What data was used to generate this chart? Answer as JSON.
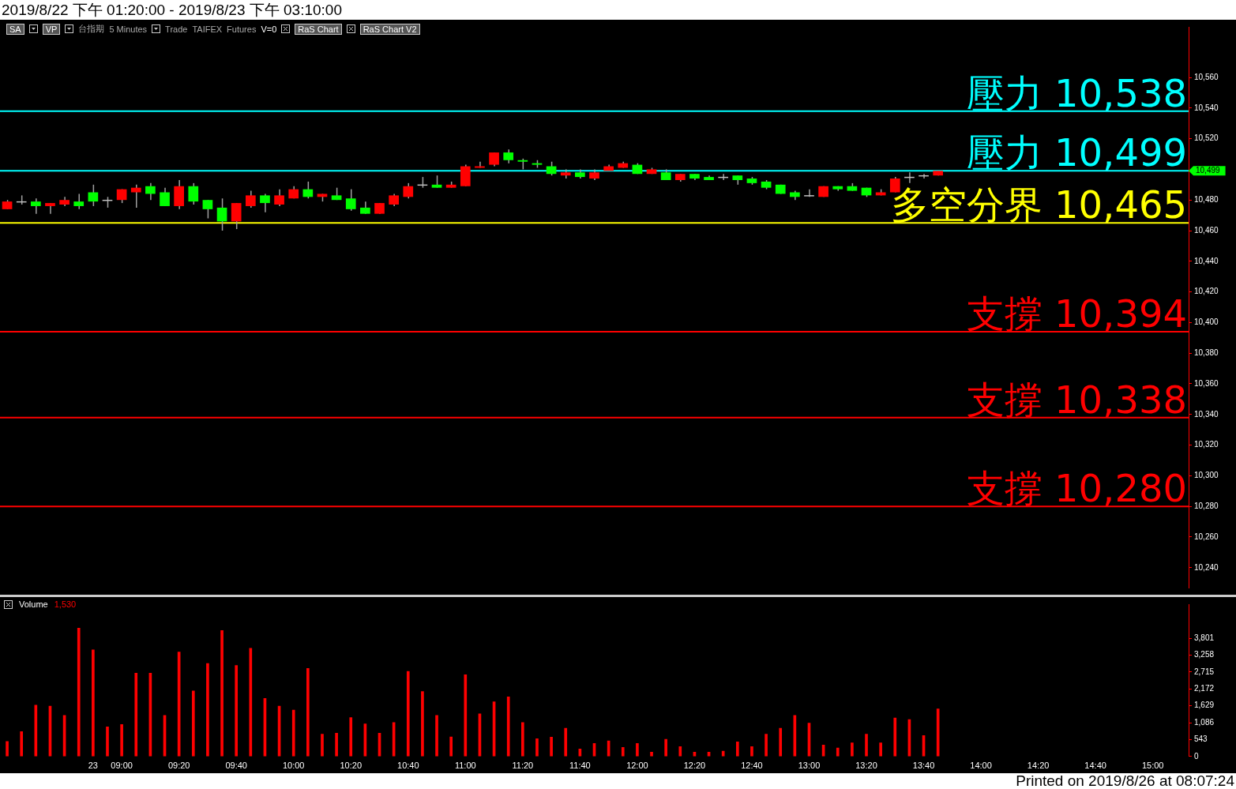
{
  "chart_data": [
    {
      "type": "candlestick",
      "title": "2019/8/22 下午 01:20:00 - 2019/8/23 下午 03:10:00",
      "categories": [
        null,
        null,
        null,
        null,
        null,
        null,
        null,
        null,
        null,
        null,
        null,
        null,
        null,
        null,
        null,
        null,
        null,
        null,
        null,
        null,
        null,
        null,
        null,
        null,
        null,
        null,
        null,
        null,
        null,
        null,
        null,
        null,
        null,
        null,
        null,
        null,
        null,
        null,
        null,
        null,
        null,
        null,
        null,
        null,
        null,
        null,
        null,
        null,
        null,
        null,
        null,
        null,
        null,
        null,
        null,
        null,
        null,
        null,
        null,
        null,
        null,
        null,
        null,
        null,
        null,
        null,
        null,
        null,
        null,
        null,
        null,
        null,
        null,
        null,
        null,
        null,
        null,
        null,
        null,
        null,
        null,
        null,
        null
      ],
      "ohlc": [
        [
          10474,
          10480,
          10474,
          10479
        ],
        [
          10479,
          10483,
          10477,
          10479
        ],
        [
          10479,
          10481,
          10471,
          10476
        ],
        [
          10476,
          10478,
          10471,
          10478
        ],
        [
          10477,
          10482,
          10476,
          10480
        ],
        [
          10479,
          10484,
          10474,
          10476
        ],
        [
          10485,
          10490,
          10476,
          10479
        ],
        [
          10480,
          10482,
          10475,
          10480
        ],
        [
          10480,
          10487,
          10478,
          10487
        ],
        [
          10485,
          10490,
          10475,
          10488
        ],
        [
          10489,
          10491,
          10480,
          10484
        ],
        [
          10485,
          10488,
          10476,
          10476
        ],
        [
          10476,
          10493,
          10474,
          10489
        ],
        [
          10489,
          10491,
          10477,
          10479
        ],
        [
          10480,
          10480,
          10468,
          10474
        ],
        [
          10475,
          10481,
          10460,
          10466
        ],
        [
          10466,
          10478,
          10461,
          10478
        ],
        [
          10476,
          10486,
          10475,
          10483
        ],
        [
          10483,
          10484,
          10472,
          10478
        ],
        [
          10477,
          10487,
          10476,
          10483
        ],
        [
          10481,
          10489,
          10481,
          10487
        ],
        [
          10487,
          10492,
          10481,
          10482
        ],
        [
          10482,
          10484,
          10479,
          10484
        ],
        [
          10483,
          10488,
          10480,
          10480
        ],
        [
          10481,
          10487,
          10473,
          10474
        ],
        [
          10475,
          10479,
          10471,
          10471
        ],
        [
          10471,
          10478,
          10471,
          10478
        ],
        [
          10477,
          10484,
          10476,
          10483
        ],
        [
          10482,
          10491,
          10481,
          10489
        ],
        [
          10490,
          10495,
          10488,
          10490
        ],
        [
          10490,
          10496,
          10488,
          10488
        ],
        [
          10488,
          10492,
          10488,
          10490
        ],
        [
          10489,
          10503,
          10489,
          10502
        ],
        [
          10501,
          10505,
          10501,
          10502
        ],
        [
          10503,
          10511,
          10502,
          10511
        ],
        [
          10511,
          10513,
          10504,
          10506
        ],
        [
          10506,
          10507,
          10500,
          10505
        ],
        [
          10504,
          10506,
          10501,
          10503
        ],
        [
          10502,
          10505,
          10496,
          10497
        ],
        [
          10496,
          10500,
          10494,
          10498
        ],
        [
          10498,
          10500,
          10494,
          10495
        ],
        [
          10494,
          10500,
          10493,
          10498
        ],
        [
          10499,
          10503,
          10499,
          10502
        ],
        [
          10501,
          10505,
          10501,
          10504
        ],
        [
          10503,
          10504,
          10497,
          10497
        ],
        [
          10497,
          10501,
          10497,
          10500
        ],
        [
          10498,
          10500,
          10493,
          10493
        ],
        [
          10493,
          10497,
          10492,
          10497
        ],
        [
          10497,
          10497,
          10493,
          10494
        ],
        [
          10495,
          10496,
          10493,
          10493
        ],
        [
          10495,
          10497,
          10493,
          10495
        ],
        [
          10496,
          10496,
          10490,
          10493
        ],
        [
          10494,
          10495,
          10490,
          10491
        ],
        [
          10492,
          10493,
          10487,
          10488
        ],
        [
          10490,
          10490,
          10484,
          10484
        ],
        [
          10485,
          10486,
          10480,
          10482
        ],
        [
          10483,
          10487,
          10482,
          10483
        ],
        [
          10482,
          10489,
          10482,
          10489
        ],
        [
          10489,
          10489,
          10486,
          10487
        ],
        [
          10489,
          10491,
          10486,
          10486
        ],
        [
          10488,
          10488,
          10482,
          10483
        ],
        [
          10483,
          10487,
          10483,
          10485
        ],
        [
          10485,
          10495,
          10485,
          10494
        ],
        [
          10495,
          10498,
          10491,
          10495
        ],
        [
          10496,
          10497,
          10494,
          10496
        ],
        [
          10496,
          10499,
          10496,
          10499
        ],
        null,
        null,
        null,
        null,
        null,
        null,
        null,
        null,
        null,
        null,
        null,
        null,
        null,
        null,
        null,
        null,
        null
      ],
      "colors": [
        "#ff0000",
        "#c0c0c0",
        "#00ff00",
        "#ff0000",
        "#ff0000",
        "#00ff00",
        "#00ff00",
        "#c0c0c0",
        "#ff0000",
        "#ff0000",
        "#00ff00",
        "#00ff00",
        "#ff0000",
        "#00ff00",
        "#00ff00",
        "#00ff00",
        "#ff0000",
        "#ff0000",
        "#00ff00",
        "#ff0000",
        "#ff0000",
        "#00ff00",
        "#ff0000",
        "#00ff00",
        "#00ff00",
        "#00ff00",
        "#ff0000",
        "#ff0000",
        "#ff0000",
        "#c0c0c0",
        "#00ff00",
        "#ff0000",
        "#ff0000",
        "#ff0000",
        "#ff0000",
        "#00ff00",
        "#00ff00",
        "#00ff00",
        "#00ff00",
        "#ff0000",
        "#00ff00",
        "#ff0000",
        "#ff0000",
        "#ff0000",
        "#00ff00",
        "#ff0000",
        "#00ff00",
        "#ff0000",
        "#00ff00",
        "#00ff00",
        "#c0c0c0",
        "#00ff00",
        "#00ff00",
        "#00ff00",
        "#00ff00",
        "#00ff00",
        "#c0c0c0",
        "#ff0000",
        "#00ff00",
        "#00ff00",
        "#00ff00",
        "#ff0000",
        "#ff0000",
        "#c0c0c0",
        "#c0c0c0",
        "#ff0000",
        null,
        null,
        null,
        null,
        null,
        null,
        null,
        null,
        null,
        null,
        null,
        null,
        null,
        null,
        null,
        null,
        null
      ],
      "ylim": [
        10227,
        10593
      ],
      "yticks": [
        {
          "value": 10240,
          "label": "10,240"
        },
        {
          "value": 10260,
          "label": "10,260"
        },
        {
          "value": 10280,
          "label": "10,280"
        },
        {
          "value": 10300,
          "label": "10,300"
        },
        {
          "value": 10320,
          "label": "10,320"
        },
        {
          "value": 10340,
          "label": "10,340"
        },
        {
          "value": 10360,
          "label": "10,360"
        },
        {
          "value": 10380,
          "label": "10,380"
        },
        {
          "value": 10400,
          "label": "10,400"
        },
        {
          "value": 10420,
          "label": "10,420"
        },
        {
          "value": 10440,
          "label": "10,440"
        },
        {
          "value": 10460,
          "label": "10,460"
        },
        {
          "value": 10480,
          "label": "10,480"
        },
        {
          "value": 10520,
          "label": "10,520"
        },
        {
          "value": 10540,
          "label": "10,540"
        },
        {
          "value": 10560,
          "label": "10,560"
        }
      ],
      "ref_lines": [
        {
          "axis": "y",
          "value": 10538,
          "label": "壓力 10,538",
          "color": "#00ffff"
        },
        {
          "axis": "y",
          "value": 10499,
          "label": "壓力 10,499",
          "color": "#00ffff"
        },
        {
          "axis": "y",
          "value": 10465,
          "label": "多空分界 10,465",
          "color": "#ffff00"
        },
        {
          "axis": "y",
          "value": 10394,
          "label": "支撐 10,394",
          "color": "#ff0000"
        },
        {
          "axis": "y",
          "value": 10338,
          "label": "支撐 10,338",
          "color": "#ff0000"
        },
        {
          "axis": "y",
          "value": 10280,
          "label": "支撐 10,280",
          "color": "#ff0000"
        }
      ],
      "annotations": [
        "SA",
        "VP",
        "台指期",
        "5 Minutes",
        "Trade",
        "TAIFEX",
        "Futures",
        "V=0",
        "RaS Chart",
        "RaS Chart V2",
        "10,499"
      ],
      "tick_labels": "y",
      "grid": false,
      "legend": false
    },
    {
      "type": "bar",
      "title": "Volume",
      "categories": [
        null,
        null,
        null,
        null,
        null,
        null,
        "23",
        null,
        "09:00",
        null,
        null,
        null,
        "09:20",
        null,
        null,
        null,
        "09:40",
        null,
        null,
        null,
        "10:00",
        null,
        null,
        null,
        "10:20",
        null,
        null,
        null,
        "10:40",
        null,
        null,
        null,
        "11:00",
        null,
        null,
        null,
        "11:20",
        null,
        null,
        null,
        "11:40",
        null,
        null,
        null,
        "12:00",
        null,
        null,
        null,
        "12:20",
        null,
        null,
        null,
        "12:40",
        null,
        null,
        null,
        "13:00",
        null,
        null,
        null,
        "13:20",
        null,
        null,
        null,
        "13:40",
        null,
        null,
        null,
        "14:00",
        null,
        null,
        null,
        "14:20",
        null,
        null,
        null,
        "14:40",
        null,
        null,
        null,
        "15:00",
        null,
        null
      ],
      "values": [
        480,
        800,
        1650,
        1620,
        1320,
        4130,
        3430,
        950,
        1030,
        2680,
        2680,
        1320,
        3360,
        2110,
        2990,
        4050,
        2930,
        3480,
        1870,
        1620,
        1490,
        2830,
        720,
        750,
        1250,
        1050,
        750,
        1090,
        2740,
        2090,
        1320,
        630,
        2630,
        1370,
        1760,
        1920,
        1090,
        570,
        620,
        910,
        240,
        420,
        500,
        290,
        420,
        140,
        550,
        320,
        140,
        140,
        170,
        470,
        320,
        720,
        910,
        1320,
        1070,
        370,
        270,
        440,
        720,
        440,
        1240,
        1190,
        670,
        1530,
        null,
        null,
        null,
        null,
        null,
        null,
        null,
        null,
        null,
        null,
        null,
        null,
        null,
        null,
        null,
        null,
        null
      ],
      "color": "#ff0000",
      "ylim": [
        0,
        4900
      ],
      "yticks": [
        0,
        {
          "value": 543,
          "label": "543"
        },
        {
          "value": 1086,
          "label": "1,086"
        },
        {
          "value": 1629,
          "label": "1,629"
        },
        {
          "value": 2172,
          "label": "2,172"
        },
        {
          "value": 2715,
          "label": "2,715"
        },
        {
          "value": 3258,
          "label": "3,258"
        },
        {
          "value": 3801,
          "label": "3,801"
        }
      ],
      "annotations": [
        "1,530",
        "Printed on 2019/8/26 at 08:07:24"
      ],
      "grid": false,
      "legend": false
    }
  ]
}
